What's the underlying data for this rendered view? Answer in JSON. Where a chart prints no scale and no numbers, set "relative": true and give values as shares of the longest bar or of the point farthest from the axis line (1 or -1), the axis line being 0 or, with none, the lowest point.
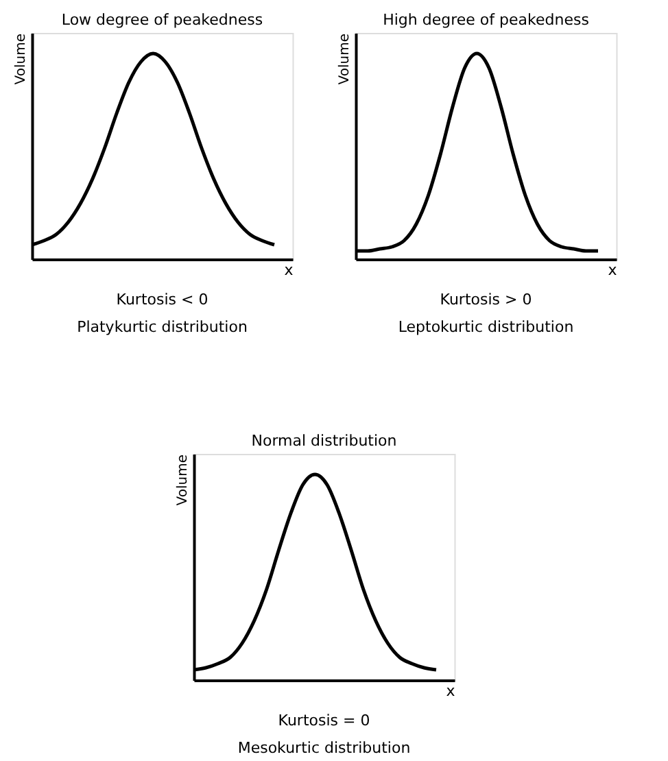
{
  "chart_data": [
    {
      "type": "line",
      "title": "Low degree of peakedness",
      "xlabel": "x",
      "ylabel": "Volume",
      "annotations": [
        "Kurtosis < 0",
        "Platykurtic distribution"
      ],
      "categories": [
        null,
        null,
        null,
        null,
        null,
        null,
        null,
        null,
        null,
        null,
        null,
        null,
        null,
        null,
        null,
        null,
        null,
        null,
        null,
        null,
        null
      ],
      "values": [
        0.07,
        0.09,
        0.12,
        0.18,
        0.27,
        0.39,
        0.54,
        0.71,
        0.86,
        0.96,
        1,
        0.96,
        0.86,
        0.71,
        0.54,
        0.39,
        0.27,
        0.18,
        0.12,
        0.09,
        0.07
      ],
      "color": "#000000",
      "relative": true,
      "tick_labels": false,
      "grid": false
    },
    {
      "type": "line",
      "title": "High degree of peakedness",
      "xlabel": "x",
      "ylabel": "Volume",
      "annotations": [
        "Kurtosis > 0",
        "Leptokurtic distribution"
      ],
      "categories": [
        null,
        null,
        null,
        null,
        null,
        null,
        null,
        null,
        null,
        null,
        null,
        null,
        null,
        null,
        null,
        null,
        null,
        null,
        null,
        null,
        null
      ],
      "values": [
        0.04,
        0.04,
        0.05,
        0.06,
        0.09,
        0.17,
        0.31,
        0.51,
        0.74,
        0.93,
        1,
        0.93,
        0.74,
        0.51,
        0.31,
        0.17,
        0.09,
        0.06,
        0.05,
        0.04,
        0.04
      ],
      "color": "#000000",
      "relative": true,
      "tick_labels": false,
      "grid": false
    },
    {
      "type": "line",
      "title": "Normal distribution",
      "xlabel": "x",
      "ylabel": "Volume",
      "annotations": [
        "Kurtosis = 0",
        "Mesokurtic distribution"
      ],
      "categories": [
        null,
        null,
        null,
        null,
        null,
        null,
        null,
        null,
        null,
        null,
        null,
        null,
        null,
        null,
        null,
        null,
        null,
        null,
        null,
        null,
        null
      ],
      "values": [
        0.05,
        0.06,
        0.08,
        0.11,
        0.18,
        0.29,
        0.44,
        0.63,
        0.81,
        0.95,
        1,
        0.95,
        0.81,
        0.63,
        0.44,
        0.29,
        0.18,
        0.11,
        0.08,
        0.06,
        0.05
      ],
      "color": "#000000",
      "relative": true,
      "tick_labels": false,
      "grid": false
    }
  ]
}
